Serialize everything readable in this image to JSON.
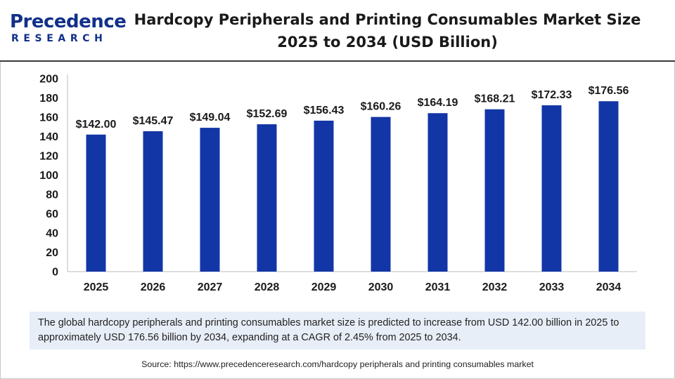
{
  "logo": {
    "top": "Precedence",
    "bottom": "RESEARCH"
  },
  "title": {
    "line1": "Hardcopy Peripherals and Printing Consumables Market Size",
    "line2": "2025 to 2034 (USD Billion)"
  },
  "colors": {
    "bar": "#1236a6",
    "brand": "#12308a",
    "description_bg": "#e8eef8"
  },
  "chart_data": {
    "type": "bar",
    "title": "Hardcopy Peripherals and Printing Consumables Market Size 2025 to 2034 (USD Billion)",
    "categories": [
      "2025",
      "2026",
      "2027",
      "2028",
      "2029",
      "2030",
      "2031",
      "2032",
      "2033",
      "2034"
    ],
    "values": [
      142.0,
      145.47,
      149.04,
      152.69,
      156.43,
      160.26,
      164.19,
      168.21,
      172.33,
      176.56
    ],
    "data_labels": [
      "$142.00",
      "$145.47",
      "$149.04",
      "$152.69",
      "$156.43",
      "$160.26",
      "$164.19",
      "$168.21",
      "$172.33",
      "$176.56"
    ],
    "y_ticks": [
      "0",
      "20",
      "40",
      "60",
      "80",
      "100",
      "120",
      "140",
      "160",
      "180",
      "200"
    ],
    "ylim": [
      0,
      200
    ],
    "xlabel": "",
    "ylabel": "",
    "grid": false,
    "legend": "none"
  },
  "description": "The global hardcopy peripherals and printing consumables market size is predicted to increase from USD 142.00 billion in 2025 to approximately USD 176.56 billion by 2034, expanding at a CAGR of 2.45% from 2025 to 2034.",
  "source": "Source: https://www.precedenceresearch.com/hardcopy peripherals and printing consumables market"
}
